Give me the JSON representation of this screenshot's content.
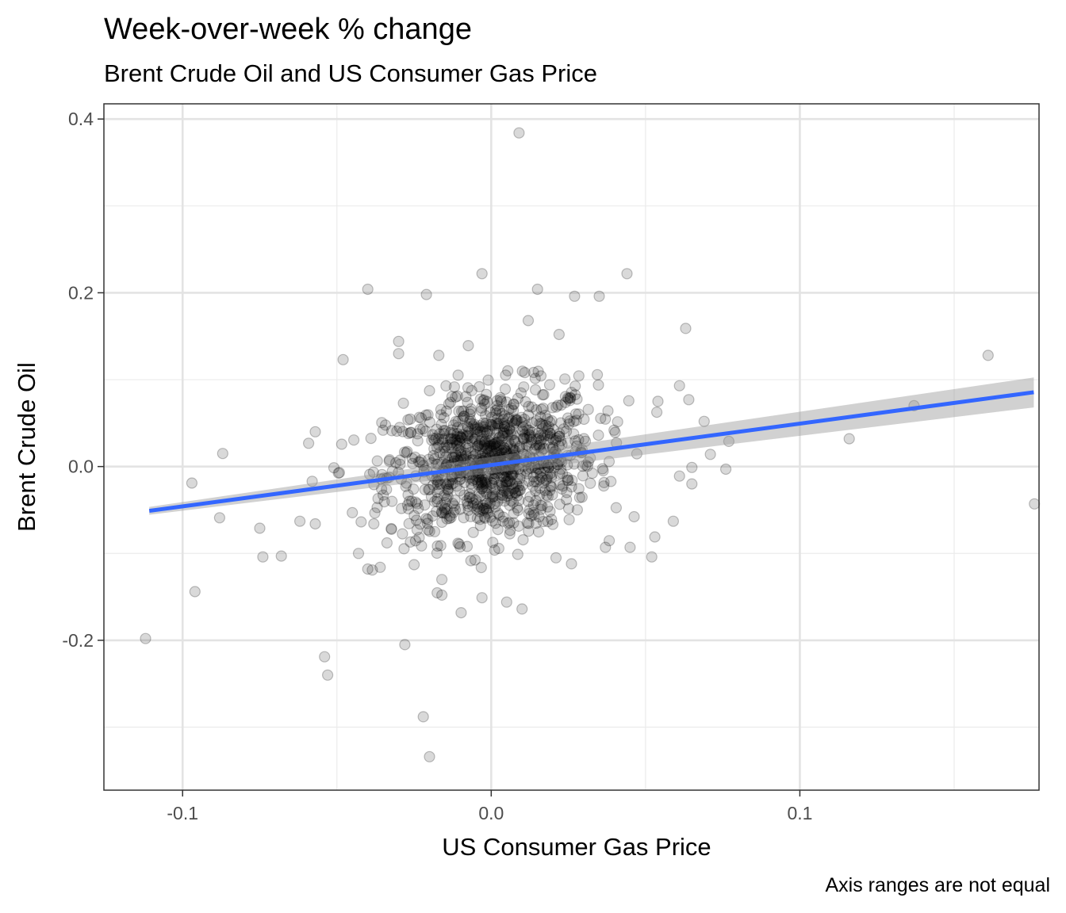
{
  "chart_data": {
    "type": "scatter",
    "title": "Week-over-week % change",
    "subtitle": "Brent Crude Oil and US Consumer Gas Price",
    "caption": "Axis ranges are not equal",
    "xlabel": "US Consumer Gas Price",
    "ylabel": "Brent Crude Oil",
    "xlim": [
      -0.1255,
      0.1775
    ],
    "ylim": [
      -0.3725,
      0.4175
    ],
    "x_ticks": [
      -0.1,
      0.0,
      0.1
    ],
    "x_tick_labels": [
      "-0.1",
      "0.0",
      "0.1"
    ],
    "y_ticks": [
      -0.2,
      0.0,
      0.2,
      0.4
    ],
    "y_tick_labels": [
      "-0.2",
      "0.0",
      "0.2",
      "0.4"
    ],
    "grid": true,
    "legend": "none",
    "point_color": "#000000",
    "point_alpha": 0.15,
    "trend_line": {
      "method": "lm",
      "color": "#3366ff",
      "band_color": "#999999",
      "start": {
        "x": -0.1108,
        "y": -0.051,
        "ci_low": -0.0555,
        "ci_high": -0.0465
      },
      "end": {
        "x": 0.1758,
        "y": 0.0855,
        "ci_low": 0.068,
        "ci_high": 0.1025
      }
    },
    "outliers": [
      {
        "x": 0.009,
        "y": 0.384
      },
      {
        "x": -0.003,
        "y": 0.222
      },
      {
        "x": 0.044,
        "y": 0.222
      },
      {
        "x": -0.04,
        "y": 0.204
      },
      {
        "x": -0.021,
        "y": 0.198
      },
      {
        "x": 0.015,
        "y": 0.204
      },
      {
        "x": 0.027,
        "y": 0.196
      },
      {
        "x": 0.035,
        "y": 0.196
      },
      {
        "x": 0.012,
        "y": 0.168
      },
      {
        "x": 0.063,
        "y": 0.159
      },
      {
        "x": 0.022,
        "y": 0.152
      },
      {
        "x": -0.03,
        "y": 0.144
      },
      {
        "x": -0.03,
        "y": 0.13
      },
      {
        "x": -0.048,
        "y": 0.123
      },
      {
        "x": -0.017,
        "y": 0.128
      },
      {
        "x": 0.161,
        "y": 0.128
      },
      {
        "x": 0.137,
        "y": 0.07
      },
      {
        "x": 0.116,
        "y": 0.032
      },
      {
        "x": 0.176,
        "y": -0.043
      },
      {
        "x": -0.057,
        "y": 0.04
      },
      {
        "x": -0.087,
        "y": 0.015
      },
      {
        "x": -0.097,
        "y": -0.019
      },
      {
        "x": -0.058,
        "y": -0.017
      },
      {
        "x": -0.088,
        "y": -0.059
      },
      {
        "x": -0.075,
        "y": -0.071
      },
      {
        "x": -0.062,
        "y": -0.063
      },
      {
        "x": -0.057,
        "y": -0.066
      },
      {
        "x": -0.074,
        "y": -0.104
      },
      {
        "x": -0.068,
        "y": -0.103
      },
      {
        "x": -0.096,
        "y": -0.144
      },
      {
        "x": -0.112,
        "y": -0.198
      },
      {
        "x": -0.054,
        "y": -0.219
      },
      {
        "x": -0.053,
        "y": -0.24
      },
      {
        "x": -0.028,
        "y": -0.205
      },
      {
        "x": -0.022,
        "y": -0.288
      },
      {
        "x": -0.02,
        "y": -0.334
      },
      {
        "x": -0.016,
        "y": -0.13
      },
      {
        "x": -0.016,
        "y": -0.148
      },
      {
        "x": -0.003,
        "y": -0.151
      },
      {
        "x": 0.005,
        "y": -0.156
      },
      {
        "x": 0.01,
        "y": -0.164
      },
      {
        "x": 0.053,
        "y": -0.081
      },
      {
        "x": 0.052,
        "y": -0.104
      },
      {
        "x": 0.059,
        "y": -0.063
      },
      {
        "x": 0.065,
        "y": -0.02
      },
      {
        "x": 0.065,
        "y": -0.001
      },
      {
        "x": 0.061,
        "y": -0.011
      },
      {
        "x": 0.069,
        "y": 0.052
      },
      {
        "x": 0.071,
        "y": 0.014
      },
      {
        "x": 0.077,
        "y": 0.029
      },
      {
        "x": 0.076,
        "y": -0.003
      },
      {
        "x": 0.061,
        "y": 0.093
      },
      {
        "x": 0.064,
        "y": 0.077
      },
      {
        "x": 0.054,
        "y": 0.075
      },
      {
        "x": 0.045,
        "y": -0.093
      },
      {
        "x": 0.037,
        "y": -0.093
      },
      {
        "x": 0.026,
        "y": -0.112
      },
      {
        "x": 0.021,
        "y": -0.105
      },
      {
        "x": -0.04,
        "y": -0.118
      },
      {
        "x": -0.036,
        "y": -0.116
      },
      {
        "x": -0.043,
        "y": -0.1
      },
      {
        "x": -0.025,
        "y": -0.113
      }
    ],
    "cluster": {
      "center": {
        "x": 0.0,
        "y": 0.005
      },
      "sd": {
        "x": 0.017,
        "y": 0.042
      },
      "n": 1000,
      "slope": 0.45
    }
  }
}
